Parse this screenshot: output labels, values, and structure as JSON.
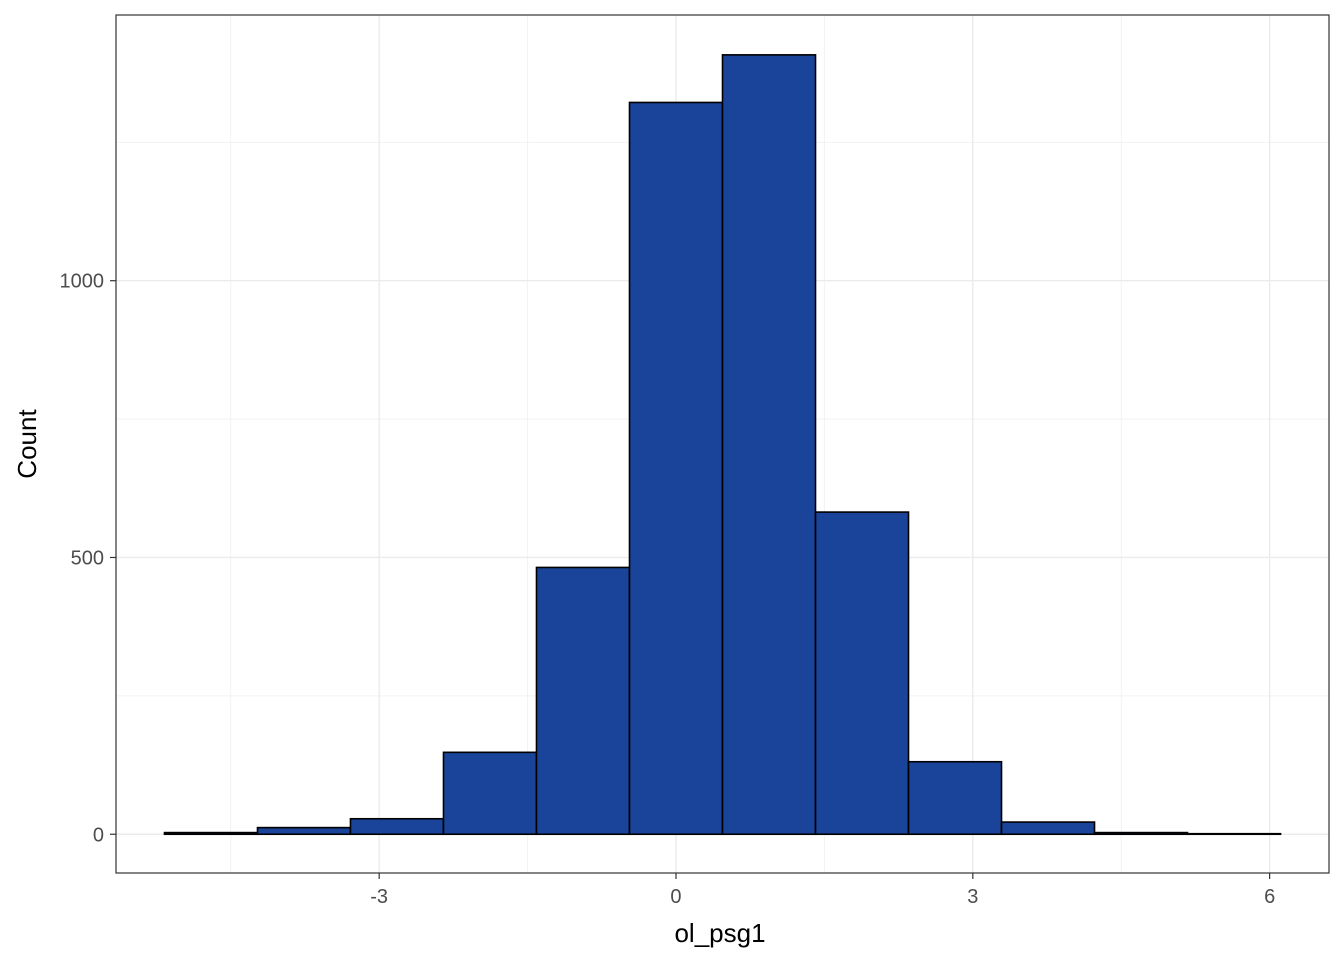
{
  "chart_data": {
    "type": "bar",
    "title": "",
    "xlabel": "ol_psg1",
    "ylabel": "Count",
    "bin_edges": [
      -5.17,
      -4.23,
      -3.29,
      -2.35,
      -1.41,
      -0.47,
      0.47,
      1.41,
      2.35,
      3.29,
      4.23,
      5.17,
      6.11
    ],
    "values": [
      3,
      12,
      28,
      148,
      482,
      1322,
      1408,
      582,
      131,
      22,
      3,
      1
    ],
    "xlim": [
      -5.66,
      6.6
    ],
    "ylim": [
      -70,
      1480
    ],
    "x_ticks": [
      -3,
      0,
      3,
      6
    ],
    "x_tick_labels": [
      "-3",
      "0",
      "3",
      "6"
    ],
    "y_ticks": [
      0,
      500,
      1000
    ],
    "y_tick_labels": [
      "0",
      "500",
      "1000"
    ],
    "x_minor_ticks": [
      -4.5,
      -1.5,
      1.5,
      4.5
    ],
    "y_minor_ticks": [
      250,
      750,
      1250
    ],
    "grid": true,
    "bar_color": "#1A4499",
    "bar_edge_color": "#000000"
  }
}
